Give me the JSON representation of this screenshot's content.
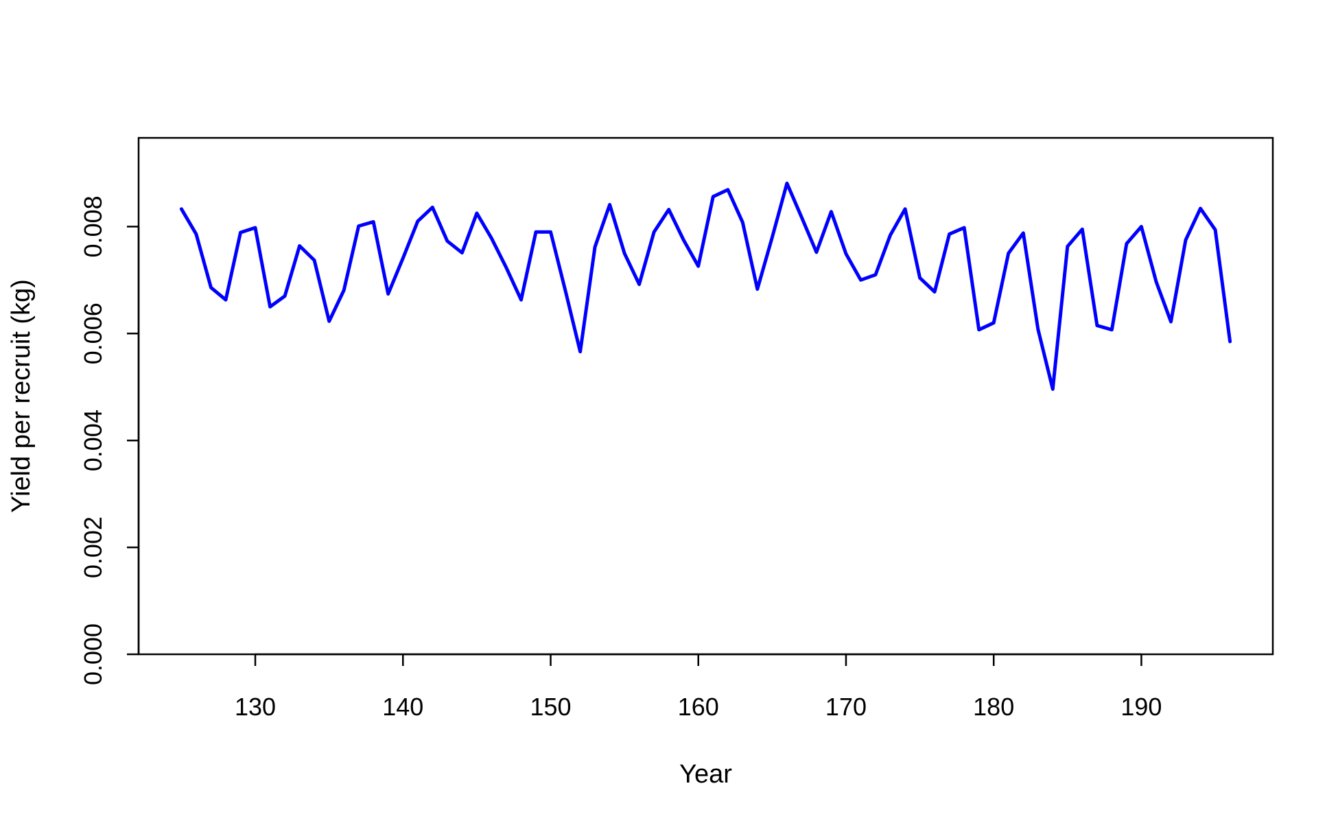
{
  "chart_data": {
    "type": "line",
    "title": "",
    "xlabel": "Year",
    "ylabel": "Yield per recruit (kg)",
    "xlim": [
      122.1,
      198.9
    ],
    "ylim": [
      0,
      0.00966
    ],
    "xticks": [
      130,
      140,
      150,
      160,
      170,
      180,
      190
    ],
    "yticks": [
      0.0,
      0.002,
      0.004,
      0.006,
      0.008
    ],
    "ytick_labels": [
      "0.000",
      "0.002",
      "0.004",
      "0.006",
      "0.008"
    ],
    "line_color": "#0000ff",
    "grid": false,
    "series": [
      {
        "x": [
          125,
          126,
          127,
          128,
          129,
          130,
          131,
          132,
          133,
          134,
          135,
          136,
          137,
          138,
          139,
          140,
          141,
          142,
          143,
          144,
          145,
          146,
          147,
          148,
          149,
          150,
          151,
          152,
          153,
          154,
          155,
          156,
          157,
          158,
          159,
          160,
          161,
          162,
          163,
          164,
          165,
          166,
          167,
          168,
          169,
          170,
          171,
          172,
          173,
          174,
          175,
          176,
          177,
          178,
          179,
          180,
          181,
          182,
          183,
          184,
          185,
          186,
          187,
          188,
          189,
          190,
          191,
          192,
          193,
          194,
          195,
          196
        ],
        "y": [
          0.00833,
          0.00786,
          0.00686,
          0.00663,
          0.00789,
          0.00798,
          0.0065,
          0.0067,
          0.00764,
          0.00737,
          0.00623,
          0.00681,
          0.00801,
          0.00809,
          0.00674,
          0.00741,
          0.0081,
          0.00836,
          0.00773,
          0.00751,
          0.00825,
          0.00778,
          0.00723,
          0.00663,
          0.0079,
          0.0079,
          0.0068,
          0.00566,
          0.00762,
          0.00841,
          0.0075,
          0.00692,
          0.0079,
          0.00832,
          0.00775,
          0.00726,
          0.00856,
          0.00869,
          0.00808,
          0.00683,
          0.0078,
          0.00881,
          0.00817,
          0.00752,
          0.00828,
          0.00749,
          0.007,
          0.0071,
          0.00784,
          0.00833,
          0.00704,
          0.00678,
          0.00786,
          0.00798,
          0.00607,
          0.0062,
          0.0075,
          0.00788,
          0.00608,
          0.00496,
          0.00763,
          0.00795,
          0.00615,
          0.00607,
          0.00768,
          0.008,
          0.00697,
          0.00622,
          0.00775,
          0.00834,
          0.00794,
          0.00585
        ]
      }
    ]
  }
}
